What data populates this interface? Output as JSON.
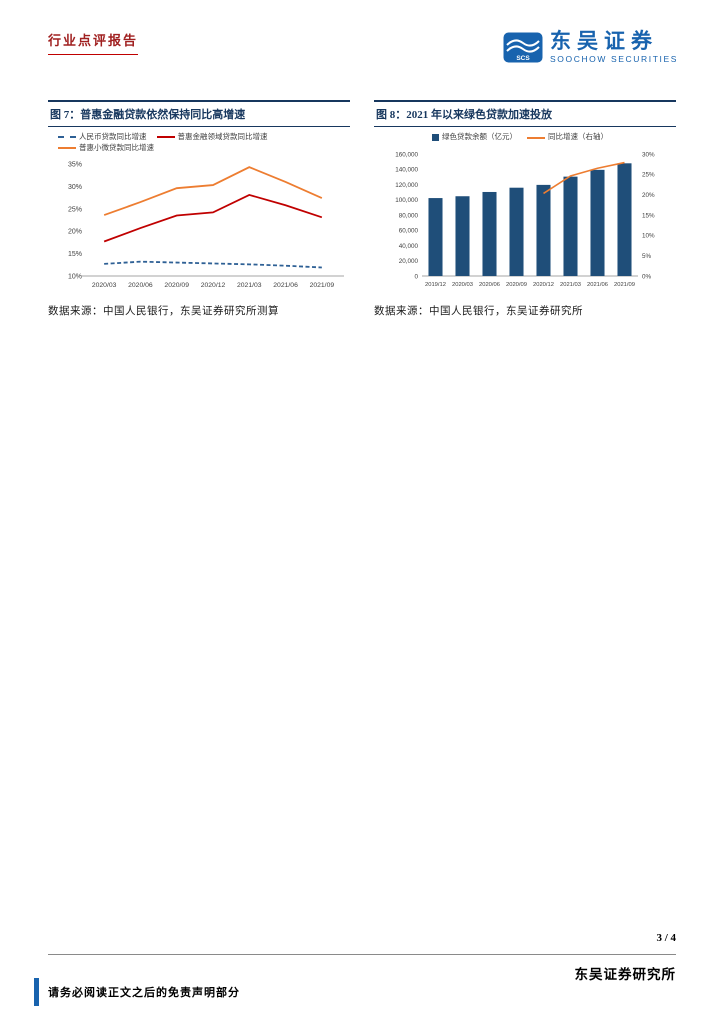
{
  "page": {
    "report_type": "行业点评报告",
    "page_number": "3 / 4",
    "institute": "东吴证券研究所",
    "disclaimer": "请务必阅读正文之后的免责声明部分"
  },
  "brand": {
    "name_cn": "东吴证券",
    "name_en": "SOOCHOW SECURITIES",
    "logo_text": "SCS"
  },
  "figures": [
    {
      "title": "图 7：普惠金融贷款依然保持同比高增速",
      "source": "数据来源：中国人民银行，东吴证券研究所测算"
    },
    {
      "title": "图 8：2021 年以来绿色贷款加速投放",
      "source": "数据来源：中国人民银行，东吴证券研究所"
    }
  ],
  "colors": {
    "title_navy": "#17375E",
    "header_red": "#A02020",
    "brand_blue": "#1863AE",
    "bar_blue": "#1F4E79",
    "orange": "#ED7D31",
    "red": "#C00000",
    "dashed_blue": "#2E6095",
    "axis_gray": "#a6a6a6",
    "tick_text": "#404040"
  },
  "chart_data": [
    {
      "type": "line",
      "title": "普惠金融贷款依然保持同比高增速",
      "categories": [
        "2020/03",
        "2020/06",
        "2020/09",
        "2020/12",
        "2021/03",
        "2021/06",
        "2021/09"
      ],
      "series": [
        {
          "name": "人民币贷款同比增速",
          "color": "#2E6095",
          "dash": true,
          "values": [
            12.7,
            13.2,
            13.0,
            12.8,
            12.6,
            12.3,
            11.9
          ]
        },
        {
          "name": "普惠金融领域贷款同比增速",
          "color": "#C00000",
          "dash": false,
          "values": [
            17.7,
            20.7,
            23.5,
            24.2,
            28.1,
            25.8,
            23.1
          ]
        },
        {
          "name": "普惠小微贷款同比增速",
          "color": "#ED7D31",
          "dash": false,
          "values": [
            23.6,
            26.5,
            29.6,
            30.3,
            34.3,
            31.0,
            27.4
          ]
        }
      ],
      "ylim": [
        10,
        35
      ],
      "ytick_step": 5,
      "yformat": "percent",
      "grid": false,
      "legend_position": "top-left"
    },
    {
      "type": "combo",
      "title": "2021 年以来绿色贷款加速投放",
      "categories": [
        "2019/12",
        "2020/03",
        "2020/06",
        "2020/09",
        "2020/12",
        "2021/03",
        "2021/06",
        "2021/09"
      ],
      "bar_series": {
        "name": "绿色贷款余额（亿元）",
        "color": "#1F4E79",
        "values": [
          102200,
          104600,
          110200,
          115800,
          119500,
          130300,
          139200,
          147800
        ]
      },
      "line_series": {
        "name": "同比增速（右轴）",
        "color": "#ED7D31",
        "values": [
          null,
          null,
          null,
          null,
          20.3,
          24.6,
          26.5,
          27.9
        ]
      },
      "ylim_left": [
        0,
        160000
      ],
      "ytick_step_left": 20000,
      "ylim_right": [
        0,
        30
      ],
      "ytick_step_right": 5,
      "grid": false,
      "legend_position": "top-center"
    }
  ]
}
